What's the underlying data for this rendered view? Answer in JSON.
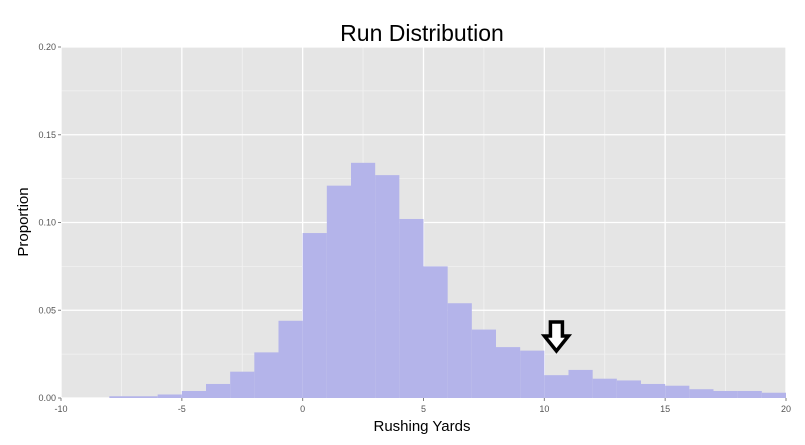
{
  "chart_data": {
    "type": "bar",
    "title": "Run Distribution",
    "xlabel": "Rushing Yards",
    "ylabel": "Proportion",
    "xlim": [
      -10,
      20
    ],
    "ylim": [
      0,
      0.2
    ],
    "x_ticks": [
      "-10",
      "-5",
      "0",
      "5",
      "10",
      "15",
      "20"
    ],
    "y_ticks": [
      "0.00",
      "0.05",
      "0.10",
      "0.15",
      "0.20"
    ],
    "bin_width": 1,
    "bins": [
      {
        "x0": -8,
        "value": 0.001
      },
      {
        "x0": -7,
        "value": 0.001
      },
      {
        "x0": -6,
        "value": 0.002
      },
      {
        "x0": -5,
        "value": 0.004
      },
      {
        "x0": -4,
        "value": 0.008
      },
      {
        "x0": -3,
        "value": 0.015
      },
      {
        "x0": -2,
        "value": 0.026
      },
      {
        "x0": -1,
        "value": 0.044
      },
      {
        "x0": 0,
        "value": 0.094
      },
      {
        "x0": 1,
        "value": 0.121
      },
      {
        "x0": 2,
        "value": 0.134
      },
      {
        "x0": 3,
        "value": 0.127
      },
      {
        "x0": 4,
        "value": 0.102
      },
      {
        "x0": 5,
        "value": 0.075
      },
      {
        "x0": 6,
        "value": 0.054
      },
      {
        "x0": 7,
        "value": 0.039
      },
      {
        "x0": 8,
        "value": 0.029
      },
      {
        "x0": 9,
        "value": 0.027
      },
      {
        "x0": 10,
        "value": 0.013
      },
      {
        "x0": 11,
        "value": 0.016
      },
      {
        "x0": 12,
        "value": 0.011
      },
      {
        "x0": 13,
        "value": 0.01
      },
      {
        "x0": 14,
        "value": 0.008
      },
      {
        "x0": 15,
        "value": 0.007
      },
      {
        "x0": 16,
        "value": 0.005
      },
      {
        "x0": 17,
        "value": 0.004
      },
      {
        "x0": 18,
        "value": 0.004
      },
      {
        "x0": 19,
        "value": 0.003
      }
    ],
    "annotation": {
      "type": "down-arrow",
      "x": 10.5
    },
    "grid": true,
    "colors": {
      "bar": "#b4b4ea",
      "panel": "#e5e5e5",
      "grid_major": "#ffffff",
      "grid_minor": "#f2f2f2",
      "arrow_fill": "#ffffff",
      "arrow_stroke": "#000000"
    }
  }
}
